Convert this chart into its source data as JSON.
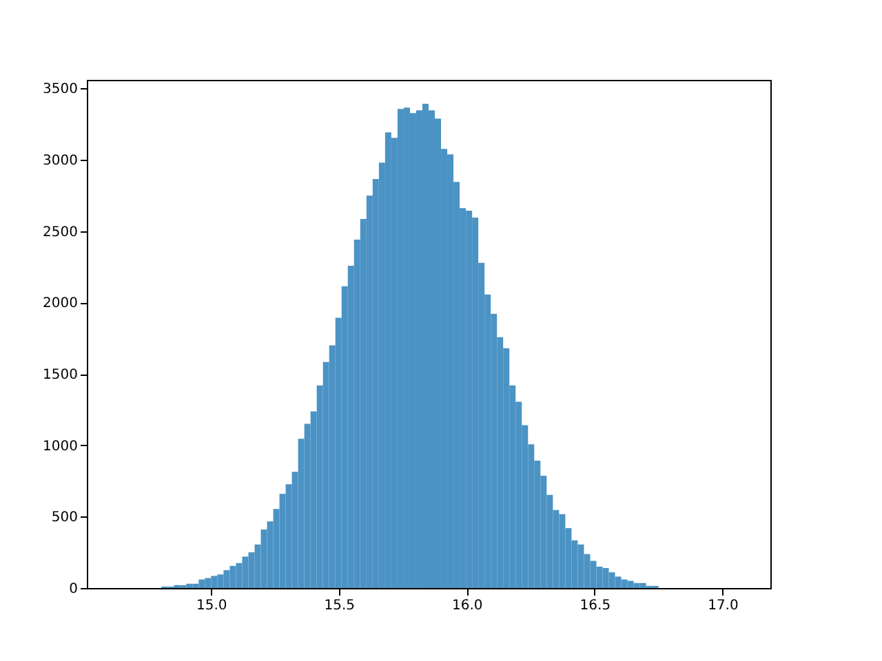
{
  "chart_data": {
    "type": "histogram",
    "color": "#4b93c4",
    "bins": [
      14.636,
      14.6603,
      14.6846,
      14.7089,
      14.7332,
      14.7575,
      14.7818,
      14.8061,
      14.8304,
      14.8547,
      14.879,
      14.9033,
      14.9276,
      14.9519,
      14.9762,
      15.0005,
      15.0248,
      15.0491,
      15.0734,
      15.0977,
      15.122,
      15.1463,
      15.1706,
      15.1949,
      15.2192,
      15.2435,
      15.2678,
      15.2921,
      15.3164,
      15.3407,
      15.365,
      15.3893,
      15.4136,
      15.4379,
      15.4622,
      15.4865,
      15.5108,
      15.5351,
      15.5594,
      15.5837,
      15.608,
      15.6323,
      15.6566,
      15.6809,
      15.7052,
      15.7295,
      15.7538,
      15.7781,
      15.8024,
      15.8267,
      15.851,
      15.8753,
      15.8996,
      15.9239,
      15.9482,
      15.9725,
      15.9968,
      16.0211,
      16.0454,
      16.0697,
      16.094,
      16.1183,
      16.1426,
      16.1669,
      16.1912,
      16.2155,
      16.2398,
      16.2641,
      16.2884,
      16.3127,
      16.337,
      16.3613,
      16.3856,
      16.4099,
      16.4342,
      16.4585,
      16.4828,
      16.5071,
      16.5314,
      16.5557,
      16.58,
      16.6043,
      16.6286,
      16.6529,
      16.6772,
      16.7015,
      16.7258,
      16.7501,
      16.7744,
      16.7987,
      16.823,
      16.8473,
      16.8716,
      16.8959,
      16.9202,
      16.9445,
      16.9688,
      16.9931,
      17.0174,
      17.0417,
      17.066
    ],
    "values": [
      0,
      0,
      0,
      0,
      0,
      0,
      0,
      10,
      10,
      20,
      20,
      30,
      30,
      60,
      70,
      85,
      95,
      125,
      155,
      175,
      220,
      250,
      305,
      410,
      467,
      553,
      660,
      727,
      814,
      1045,
      1150,
      1237,
      1420,
      1583,
      1700,
      1893,
      2114,
      2258,
      2441,
      2585,
      2749,
      2865,
      2980,
      3192,
      3154,
      3356,
      3366,
      3327,
      3346,
      3392,
      3346,
      3289,
      3076,
      3038,
      2845,
      2662,
      2643,
      2595,
      2278,
      2056,
      1921,
      1757,
      1680,
      1420,
      1305,
      1141,
      1007,
      892,
      786,
      652,
      546,
      517,
      420,
      334,
      305,
      238,
      190,
      150,
      140,
      110,
      80,
      60,
      50,
      35,
      35,
      15,
      15,
      0,
      0,
      0,
      0,
      0,
      0,
      0,
      0,
      0,
      0,
      0,
      0,
      0
    ],
    "xlim": [
      14.5145,
      17.1875
    ],
    "xticks": [
      {
        "value": 15,
        "label": "15.0"
      },
      15.5,
      {
        "value": 16,
        "label": "16.0"
      },
      16.5,
      {
        "value": 17,
        "label": "17.0"
      }
    ],
    "ylim": [
      0,
      3560
    ],
    "yticks": [
      0,
      500,
      1000,
      1500,
      2000,
      2500,
      3000,
      3500
    ],
    "grid": false
  }
}
